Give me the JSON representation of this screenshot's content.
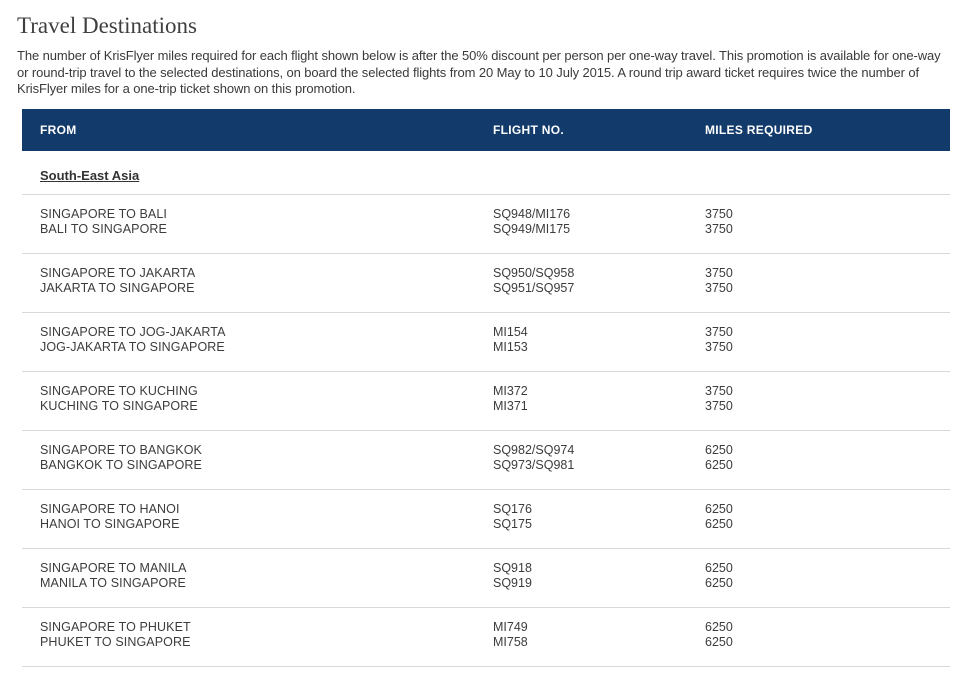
{
  "page": {
    "title": "Travel Destinations",
    "intro": "The number of KrisFlyer miles required for each flight shown below is after the 50% discount per person per one-way travel. This promotion is available for one-way or round-trip travel to the selected destinations, on board the selected flights from 20 May to 10 July 2015. A round trip award ticket requires twice the number of KrisFlyer miles for a one-trip ticket shown on this promotion."
  },
  "table": {
    "headers": {
      "from": "FROM",
      "flight_no": "FLIGHT NO.",
      "miles": "MILES REQUIRED"
    },
    "section": "South-East Asia",
    "rows": [
      {
        "routes": [
          "SINGAPORE TO BALI",
          "BALI TO SINGAPORE"
        ],
        "flights": [
          "SQ948/MI176",
          "SQ949/MI175"
        ],
        "miles": [
          "3750",
          "3750"
        ]
      },
      {
        "routes": [
          "SINGAPORE TO JAKARTA",
          "JAKARTA TO SINGAPORE"
        ],
        "flights": [
          "SQ950/SQ958",
          "SQ951/SQ957"
        ],
        "miles": [
          "3750",
          "3750"
        ]
      },
      {
        "routes": [
          "SINGAPORE TO JOG-JAKARTA",
          "JOG-JAKARTA TO SINGAPORE"
        ],
        "flights": [
          "MI154",
          "MI153"
        ],
        "miles": [
          "3750",
          "3750"
        ]
      },
      {
        "routes": [
          "SINGAPORE TO KUCHING",
          "KUCHING TO SINGAPORE"
        ],
        "flights": [
          "MI372",
          "MI371"
        ],
        "miles": [
          "3750",
          "3750"
        ]
      },
      {
        "routes": [
          "SINGAPORE TO BANGKOK",
          "BANGKOK TO SINGAPORE"
        ],
        "flights": [
          "SQ982/SQ974",
          "SQ973/SQ981"
        ],
        "miles": [
          "6250",
          "6250"
        ]
      },
      {
        "routes": [
          "SINGAPORE TO HANOI",
          "HANOI TO SINGAPORE"
        ],
        "flights": [
          "SQ176",
          "SQ175"
        ],
        "miles": [
          "6250",
          "6250"
        ]
      },
      {
        "routes": [
          "SINGAPORE TO MANILA",
          "MANILA TO SINGAPORE"
        ],
        "flights": [
          "SQ918",
          "SQ919"
        ],
        "miles": [
          "6250",
          "6250"
        ]
      },
      {
        "routes": [
          "SINGAPORE TO PHUKET",
          "PHUKET TO SINGAPORE"
        ],
        "flights": [
          "MI749",
          "MI758"
        ],
        "miles": [
          "6250",
          "6250"
        ]
      }
    ],
    "colors": {
      "header_bg": "#123A6B",
      "header_text": "#FFFFFF",
      "body_text": "#3C3C3C",
      "separator": "#D9D9D9"
    }
  }
}
